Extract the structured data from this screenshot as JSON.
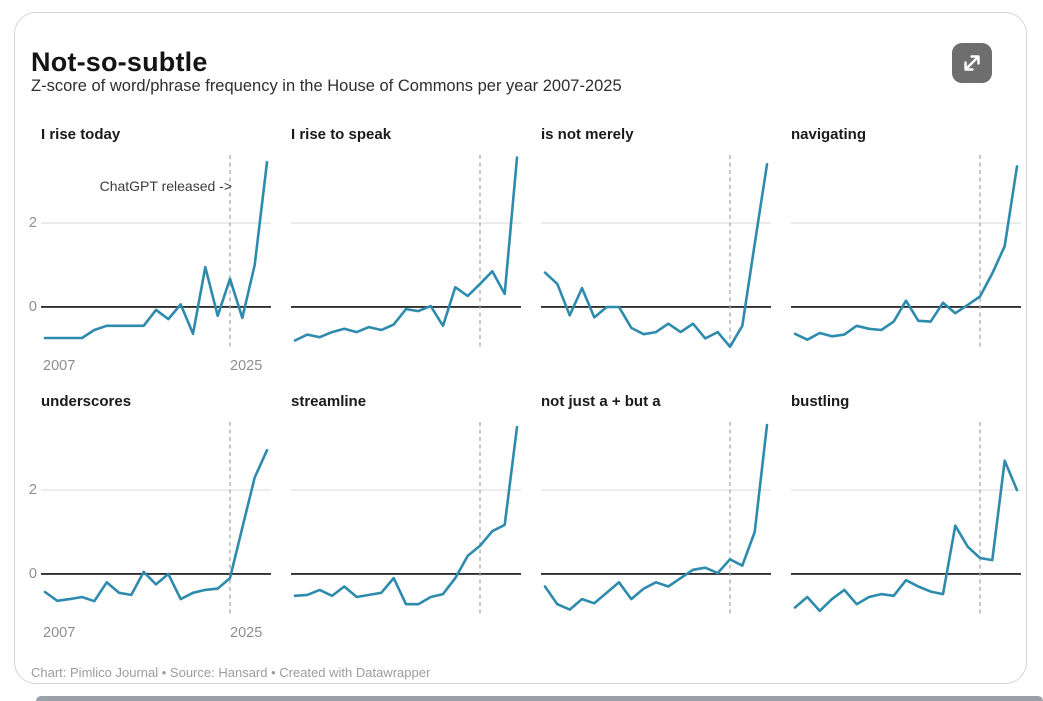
{
  "page": {
    "title": "Not-so-subtle",
    "subtitle": "Z-score of word/phrase frequency in the House of Commons per year 2007-2025",
    "footer": "Chart: Pimlico Journal • Source: Hansard • Created with Datawrapper",
    "expand_button_icon": "expand-diagonal-arrows"
  },
  "colors": {
    "line": "#2e8bad",
    "zero_line": "#2f2f2f",
    "gridline": "#e3e3e3",
    "vline": "#ababab",
    "axis_label": "#8e8e8e",
    "annotation": "#3c3c3c",
    "button_bg": "#6e6e6e",
    "card_border": "#d5d5d5",
    "bottom_bar": "#99a0a9"
  },
  "chart_config": {
    "x": [
      2007,
      2008,
      2009,
      2010,
      2011,
      2012,
      2013,
      2014,
      2015,
      2016,
      2017,
      2018,
      2019,
      2020,
      2021,
      2022,
      2023,
      2024,
      2025
    ],
    "ylim": [
      -1.05,
      3.67
    ],
    "y_ticks": [
      "0",
      "2"
    ],
    "y_tick_values": [
      0,
      2
    ],
    "x_ticks": [
      "2007",
      "2025"
    ],
    "vline_x": 2022,
    "grid": "horizontal-only",
    "legend": "none"
  },
  "chart_data": [
    {
      "type": "line",
      "title": "I rise today",
      "annotation": "ChatGPT released ->",
      "show_axis_labels": true,
      "values": [
        -0.74,
        -0.74,
        -0.74,
        -0.74,
        -0.55,
        -0.45,
        -0.45,
        -0.45,
        -0.45,
        -0.07,
        -0.29,
        0.06,
        -0.64,
        0.95,
        -0.21,
        0.67,
        -0.26,
        1.0,
        3.45
      ]
    },
    {
      "type": "line",
      "title": "I rise to speak",
      "show_axis_labels": false,
      "values": [
        -0.8,
        -0.66,
        -0.72,
        -0.6,
        -0.52,
        -0.6,
        -0.48,
        -0.55,
        -0.42,
        -0.05,
        -0.1,
        0.02,
        -0.45,
        0.47,
        0.26,
        0.55,
        0.85,
        0.31,
        3.56
      ]
    },
    {
      "type": "line",
      "title": "is not merely",
      "show_axis_labels": false,
      "values": [
        0.82,
        0.55,
        -0.2,
        0.45,
        -0.25,
        0.0,
        0.0,
        -0.5,
        -0.65,
        -0.6,
        -0.4,
        -0.6,
        -0.4,
        -0.75,
        -0.6,
        -0.95,
        -0.45,
        1.5,
        3.4
      ]
    },
    {
      "type": "line",
      "title": "navigating",
      "show_axis_labels": false,
      "values": [
        -0.64,
        -0.78,
        -0.62,
        -0.7,
        -0.66,
        -0.45,
        -0.52,
        -0.55,
        -0.35,
        0.15,
        -0.33,
        -0.35,
        0.1,
        -0.15,
        0.05,
        0.25,
        0.8,
        1.45,
        3.35
      ]
    },
    {
      "type": "line",
      "title": "underscores",
      "show_axis_labels": true,
      "values": [
        -0.43,
        -0.64,
        -0.6,
        -0.55,
        -0.65,
        -0.2,
        -0.45,
        -0.5,
        0.05,
        -0.25,
        0.0,
        -0.6,
        -0.45,
        -0.38,
        -0.35,
        -0.1,
        1.1,
        2.3,
        2.95
      ]
    },
    {
      "type": "line",
      "title": "streamline",
      "show_axis_labels": false,
      "values": [
        -0.52,
        -0.5,
        -0.38,
        -0.52,
        -0.3,
        -0.55,
        -0.5,
        -0.45,
        -0.1,
        -0.72,
        -0.72,
        -0.55,
        -0.48,
        -0.1,
        0.43,
        0.67,
        1.02,
        1.17,
        3.5
      ]
    },
    {
      "type": "line",
      "title": "not just a + but a",
      "show_axis_labels": false,
      "values": [
        -0.3,
        -0.72,
        -0.85,
        -0.6,
        -0.7,
        -0.45,
        -0.2,
        -0.6,
        -0.35,
        -0.2,
        -0.3,
        -0.1,
        0.1,
        0.15,
        0.02,
        0.35,
        0.2,
        1.0,
        3.55
      ]
    },
    {
      "type": "line",
      "title": "bustling",
      "show_axis_labels": false,
      "values": [
        -0.8,
        -0.55,
        -0.88,
        -0.6,
        -0.38,
        -0.72,
        -0.55,
        -0.48,
        -0.52,
        -0.15,
        -0.3,
        -0.42,
        -0.48,
        1.15,
        0.65,
        0.38,
        0.33,
        2.7,
        2.0
      ]
    }
  ]
}
